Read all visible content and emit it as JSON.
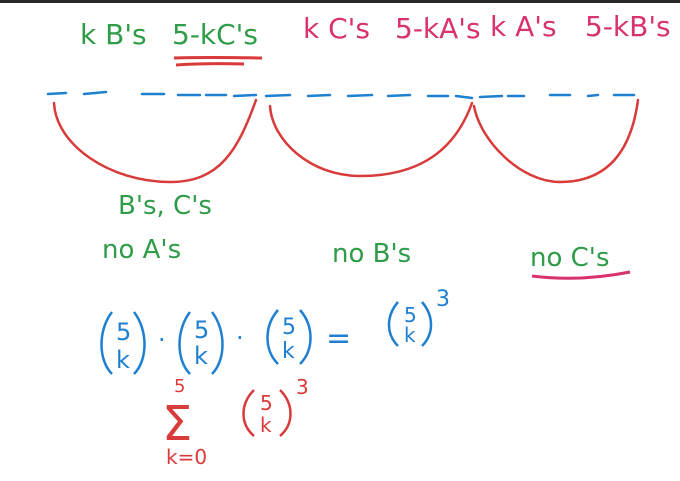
{
  "colors": {
    "green": "#2e9c48",
    "pink": "#d8336f",
    "blue": "#1f7fd0",
    "red": "#d93a3a",
    "border": "#2a2a2a"
  },
  "header": {
    "group1": {
      "kb": "k B's",
      "rest": "5-kC's"
    },
    "group2": {
      "kc": "k C's",
      "rest": "5-kA's"
    },
    "group3": {
      "ka": "k A's",
      "rest": "5-kB's"
    }
  },
  "labels": {
    "bc": "B's, C's",
    "no_a": "no A's",
    "no_b": "no B's",
    "no_c": "no C's"
  },
  "formula": {
    "binom_top": "5",
    "binom_bottom": "k",
    "dot": "·",
    "equals": "=",
    "cube": "3",
    "sum_upper": "5",
    "sum_sigma": "Σ",
    "sum_lower": "k=0"
  }
}
